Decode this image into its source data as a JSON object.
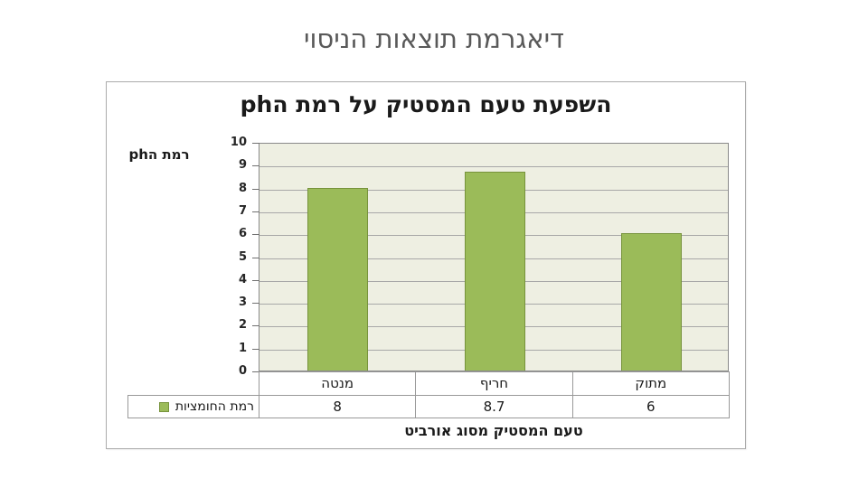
{
  "page": {
    "title": "דיאגרמת תוצאות הניסוי"
  },
  "chart": {
    "title": "השפעת טעם המסטיק על רמת הph",
    "y_axis_label": "רמת הph",
    "x_axis_title": "טעם המסטיק מסוג אורביט",
    "legend_label": "רמת החומציות"
  },
  "chart_data": {
    "type": "bar",
    "title": "השפעת טעם המסטיק על רמת הph",
    "categories": [
      "מנטה",
      "חריף",
      "מתוק"
    ],
    "series": [
      {
        "name": "רמת החומציות",
        "values": [
          8,
          8.7,
          6
        ]
      }
    ],
    "value_labels": [
      "8",
      "8.7",
      "6"
    ],
    "xlabel": "טעם המסטיק מסוג אורביט",
    "ylabel": "רמת הph",
    "ylim": [
      0,
      10
    ],
    "ytick_step": 1,
    "grid": true,
    "legend_position": "bottom-left-table",
    "colors": {
      "bar_fill": "#9BBB59",
      "bar_border": "#77933C",
      "plot_background": "#EEEFE2",
      "gridline": "#A8A8A8",
      "page_title_text": "#595959"
    }
  }
}
